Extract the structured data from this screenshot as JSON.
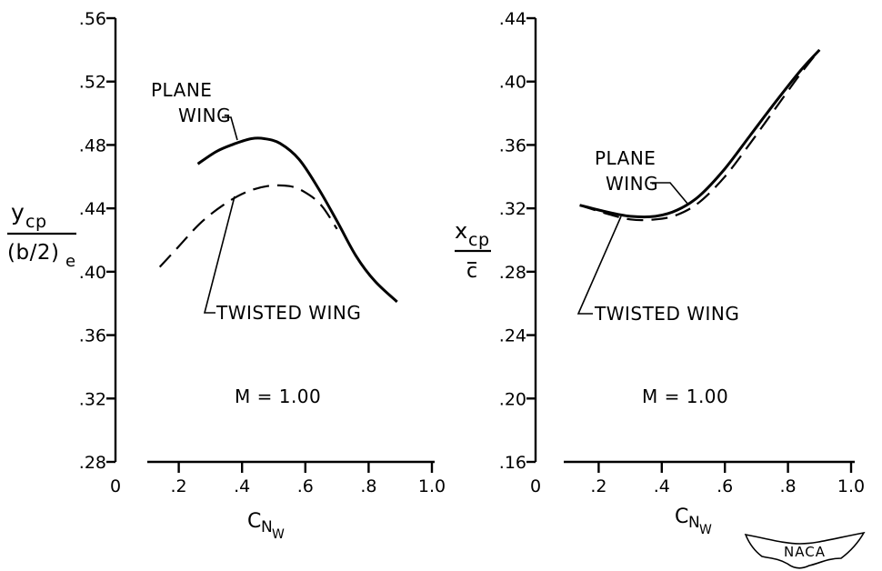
{
  "chart_data": [
    {
      "type": "line",
      "id": "left",
      "title": "",
      "xlabel": "C",
      "xlabel_sub": "N",
      "xlabel_subsub": "W",
      "ylabel_numerator": "y",
      "ylabel_numerator_sub": "cp",
      "ylabel_denominator": "(b/2)",
      "ylabel_denominator_sub": "e",
      "xlim": [
        0,
        1.0
      ],
      "ylim": [
        0.28,
        0.56
      ],
      "x_ticks": [
        "0",
        ".2",
        ".4",
        ".6",
        ".8",
        "1.0"
      ],
      "y_ticks": [
        ".28",
        ".32",
        ".36",
        ".40",
        ".44",
        ".48",
        ".52",
        ".56"
      ],
      "annotation": "M = 1.00",
      "series": [
        {
          "name": "PLANE WING",
          "style": "solid",
          "label_lines": [
            "PLANE",
            "WING"
          ],
          "x": [
            0.26,
            0.32,
            0.38,
            0.43,
            0.47,
            0.52,
            0.58,
            0.64,
            0.7,
            0.76,
            0.82,
            0.89
          ],
          "y": [
            0.468,
            0.476,
            0.481,
            0.484,
            0.484,
            0.481,
            0.471,
            0.453,
            0.432,
            0.41,
            0.394,
            0.381
          ]
        },
        {
          "name": "TWISTED WING",
          "style": "dashed",
          "label_lines": [
            "TWISTED WING"
          ],
          "x": [
            0.14,
            0.2,
            0.27,
            0.34,
            0.41,
            0.48,
            0.55,
            0.6,
            0.65,
            0.7
          ],
          "y": [
            0.403,
            0.416,
            0.431,
            0.442,
            0.45,
            0.454,
            0.454,
            0.45,
            0.442,
            0.427
          ]
        }
      ]
    },
    {
      "type": "line",
      "id": "right",
      "title": "",
      "xlabel": "C",
      "xlabel_sub": "N",
      "xlabel_subsub": "W",
      "ylabel_numerator": "x",
      "ylabel_numerator_sub": "cp",
      "ylabel_denominator": "c",
      "xlim": [
        0,
        1.0
      ],
      "ylim": [
        0.16,
        0.44
      ],
      "x_ticks": [
        "0",
        ".2",
        ".4",
        ".6",
        ".8",
        "1.0"
      ],
      "y_ticks": [
        ".16",
        ".20",
        ".24",
        ".28",
        ".32",
        ".36",
        ".40",
        ".44"
      ],
      "annotation": "M = 1.00",
      "series": [
        {
          "name": "PLANE WING",
          "style": "solid",
          "label_lines": [
            "PLANE",
            "WING"
          ],
          "x": [
            0.14,
            0.22,
            0.3,
            0.38,
            0.45,
            0.52,
            0.6,
            0.68,
            0.76,
            0.84,
            0.9
          ],
          "y": [
            0.322,
            0.318,
            0.315,
            0.315,
            0.319,
            0.328,
            0.345,
            0.366,
            0.387,
            0.407,
            0.42
          ]
        },
        {
          "name": "TWISTED WING",
          "style": "dashed",
          "label_lines": [
            "TWISTED WING"
          ],
          "x": [
            0.14,
            0.22,
            0.3,
            0.38,
            0.45,
            0.52,
            0.6,
            0.68,
            0.76,
            0.84,
            0.9
          ],
          "y": [
            0.322,
            0.317,
            0.313,
            0.313,
            0.316,
            0.324,
            0.34,
            0.361,
            0.383,
            0.405,
            0.42
          ]
        }
      ]
    }
  ],
  "logo": {
    "text": "NACA"
  }
}
